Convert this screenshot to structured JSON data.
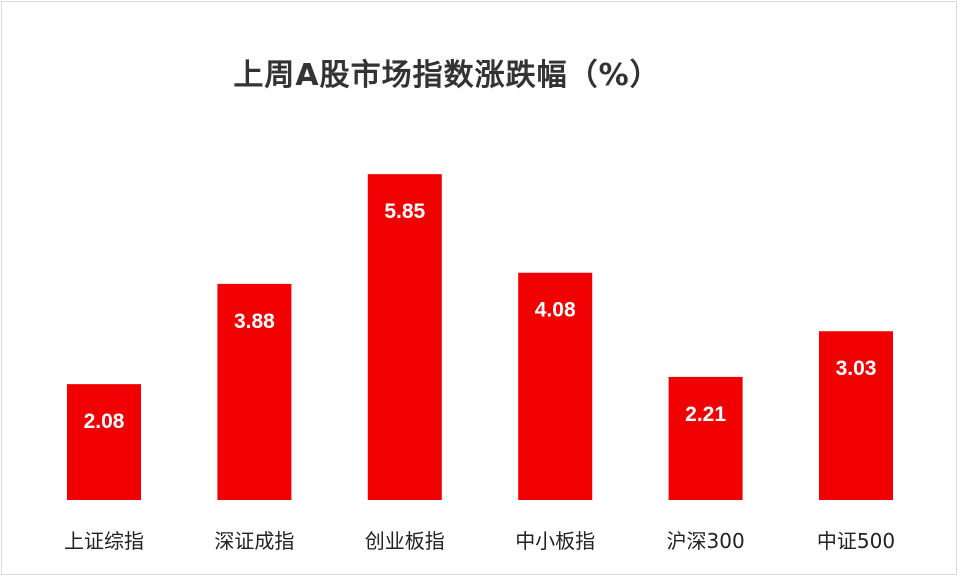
{
  "chart_data": {
    "type": "bar",
    "title": "上周A股市场指数涨跌幅（%）",
    "categories": [
      "上证综指",
      "深证成指",
      "创业板指",
      "中小板指",
      "沪深300",
      "中证500"
    ],
    "values": [
      2.08,
      3.88,
      5.85,
      4.08,
      2.21,
      3.03
    ],
    "value_labels": [
      "2.08",
      "3.88",
      "5.85",
      "4.08",
      "2.21",
      "3.03"
    ],
    "bar_color": "#f00000",
    "grid": false,
    "legend": "none"
  }
}
